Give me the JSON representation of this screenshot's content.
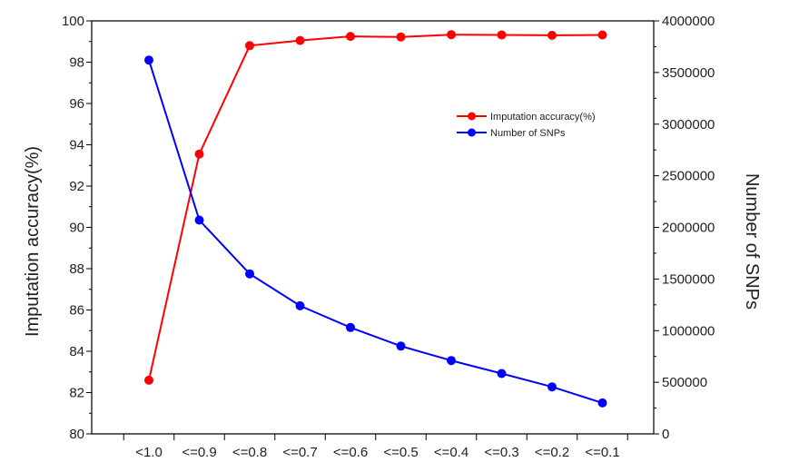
{
  "chart_data": {
    "type": "line",
    "title": "",
    "xlabel": "",
    "ylabel": "Imputation accuracy(%)",
    "y2label": "Number of SNPs",
    "categories": [
      "<1.0",
      "<=0.9",
      "<=0.8",
      "<=0.7",
      "<=0.6",
      "<=0.5",
      "<=0.4",
      "<=0.3",
      "<=0.2",
      "<=0.1"
    ],
    "ylim": [
      80,
      100
    ],
    "y_ticks": [
      "80",
      "82",
      "84",
      "86",
      "88",
      "90",
      "92",
      "94",
      "96",
      "98",
      "100"
    ],
    "y2lim": [
      0,
      4000000
    ],
    "y2_ticks": [
      "0",
      "500000",
      "1000000",
      "1500000",
      "2000000",
      "2500000",
      "3000000",
      "3500000",
      "4000000"
    ],
    "grid": false,
    "legend_position": "upper-right",
    "series": [
      {
        "name": "Imputation accuracy(%)",
        "axis": "left",
        "color": "#ff0000",
        "values": [
          82.6,
          93.55,
          98.8,
          99.05,
          99.25,
          99.22,
          99.33,
          99.32,
          99.3,
          99.32
        ]
      },
      {
        "name": "Number of SNPs",
        "axis": "right",
        "color": "#0000ff",
        "values": [
          3620000,
          2070000,
          1550000,
          1240000,
          1030000,
          850000,
          710000,
          585000,
          455000,
          300000
        ]
      }
    ]
  }
}
